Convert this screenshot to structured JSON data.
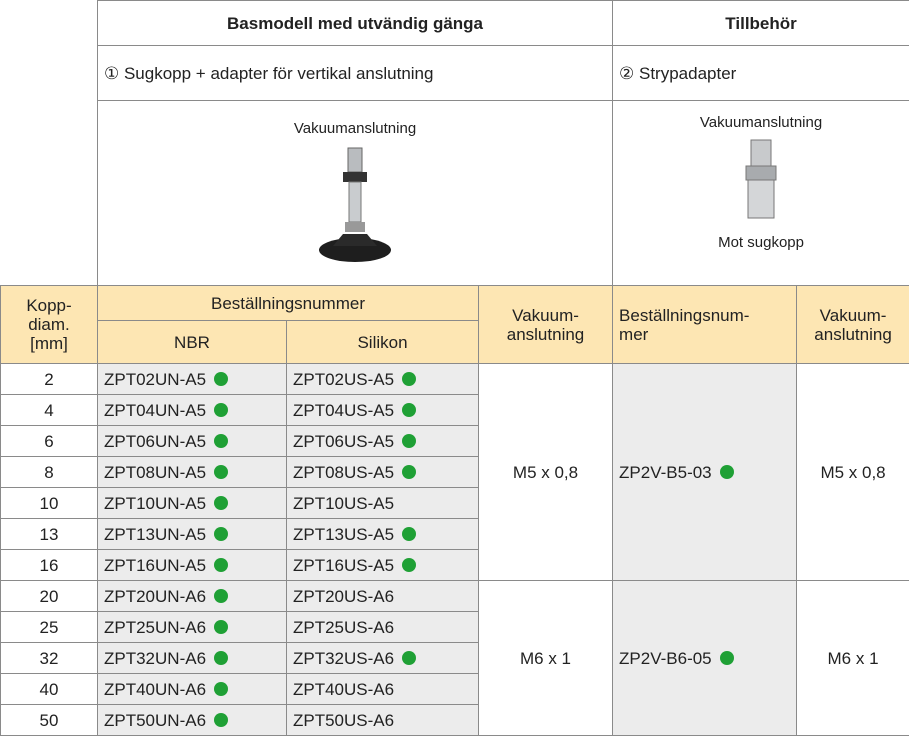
{
  "header": {
    "title": "Basmodell med utvändig gänga",
    "accessories_title": "Tillbehör",
    "model_desc": "① Sugkopp + adapter för vertikal anslutning",
    "accessory_desc": "② Strypadapter",
    "model_image_label": "Vakuumanslutning",
    "accessory_image_label_top": "Vakuumanslutning",
    "accessory_image_label_bottom": "Mot sugkopp"
  },
  "table": {
    "columns": {
      "diameter": "Kopp-\ndiam.\n[mm]",
      "order_number": "Beställningsnummer",
      "nbr": "NBR",
      "silicone": "Silikon",
      "vacuum": "Vakuum-\nanslutning",
      "accessory_order_number": "Beställningsnum-\nmer",
      "accessory_vacuum": "Vakuum-\nanslutning"
    },
    "groups": [
      {
        "vacuum": "M5 x 0,8",
        "accessory": "ZP2V-B5-03",
        "accessory_dot": true,
        "accessory_vacuum": "M5 x 0,8",
        "rows": [
          {
            "diam": 2,
            "nbr": "ZPT02UN-A5",
            "nbr_dot": true,
            "silicone": "ZPT02US-A5",
            "silicone_dot": true
          },
          {
            "diam": 4,
            "nbr": "ZPT04UN-A5",
            "nbr_dot": true,
            "silicone": "ZPT04US-A5",
            "silicone_dot": true
          },
          {
            "diam": 6,
            "nbr": "ZPT06UN-A5",
            "nbr_dot": true,
            "silicone": "ZPT06US-A5",
            "silicone_dot": true
          },
          {
            "diam": 8,
            "nbr": "ZPT08UN-A5",
            "nbr_dot": true,
            "silicone": "ZPT08US-A5",
            "silicone_dot": true
          },
          {
            "diam": 10,
            "nbr": "ZPT10UN-A5",
            "nbr_dot": true,
            "silicone": "ZPT10US-A5",
            "silicone_dot": false
          },
          {
            "diam": 13,
            "nbr": "ZPT13UN-A5",
            "nbr_dot": true,
            "silicone": "ZPT13US-A5",
            "silicone_dot": true
          },
          {
            "diam": 16,
            "nbr": "ZPT16UN-A5",
            "nbr_dot": true,
            "silicone": "ZPT16US-A5",
            "silicone_dot": true
          }
        ]
      },
      {
        "vacuum": "M6 x 1",
        "accessory": "ZP2V-B6-05",
        "accessory_dot": true,
        "accessory_vacuum": "M6 x 1",
        "rows": [
          {
            "diam": 20,
            "nbr": "ZPT20UN-A6",
            "nbr_dot": true,
            "silicone": "ZPT20US-A6",
            "silicone_dot": false
          },
          {
            "diam": 25,
            "nbr": "ZPT25UN-A6",
            "nbr_dot": true,
            "silicone": "ZPT25US-A6",
            "silicone_dot": false
          },
          {
            "diam": 32,
            "nbr": "ZPT32UN-A6",
            "nbr_dot": true,
            "silicone": "ZPT32US-A6",
            "silicone_dot": true
          },
          {
            "diam": 40,
            "nbr": "ZPT40UN-A6",
            "nbr_dot": true,
            "silicone": "ZPT40US-A6",
            "silicone_dot": false
          },
          {
            "diam": 50,
            "nbr": "ZPT50UN-A6",
            "nbr_dot": true,
            "silicone": "ZPT50US-A6",
            "silicone_dot": false
          }
        ]
      }
    ]
  }
}
